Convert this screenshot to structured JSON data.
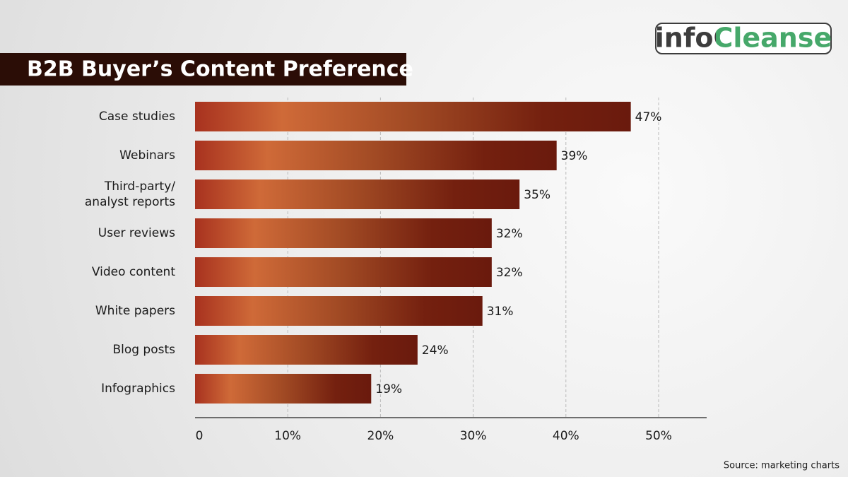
{
  "brand": "infoCleanse",
  "source": "Source: marketing charts",
  "chart_data": {
    "type": "bar",
    "orientation": "horizontal",
    "title": "B2B Buyer’s Content Preference",
    "categories": [
      "Case studies",
      "Webinars",
      "Third-party/ analyst reports",
      "User reviews",
      "Video content",
      "White papers",
      "Blog posts",
      "Infographics"
    ],
    "values": [
      47,
      39,
      35,
      32,
      32,
      31,
      24,
      19
    ],
    "value_labels": [
      "47%",
      "39%",
      "35%",
      "32%",
      "32%",
      "31%",
      "24%",
      "19%"
    ],
    "xlim": [
      0,
      55
    ],
    "xticks": [
      0,
      {
        "value": 10,
        "label": "10%"
      },
      {
        "value": 20,
        "label": "20%"
      },
      {
        "value": 30,
        "label": "30%"
      },
      {
        "value": 40,
        "label": "40%"
      },
      {
        "value": 50,
        "label": "50%"
      }
    ],
    "grid": true,
    "color": "#8a2e16"
  }
}
